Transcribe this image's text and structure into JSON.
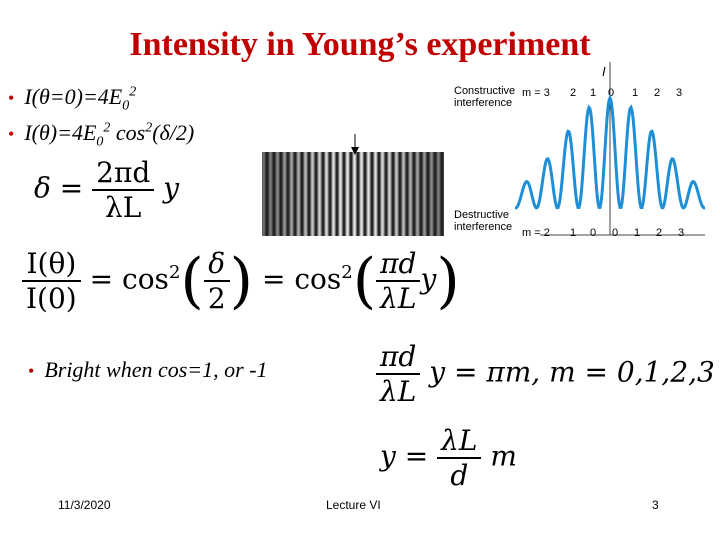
{
  "slide": {
    "title": "Intensity in Young’s experiment",
    "bullets": [
      {
        "pre": "I(",
        "theta": "θ",
        "mid": "=0)=4E",
        "sub": "0",
        "sup": "2",
        "post": ""
      },
      {
        "pre": "I(",
        "theta": "θ",
        "mid": ")=4E",
        "sub": "0",
        "sup": "2",
        "post": " cos",
        "sup2": "2",
        "tail": "(δ/2)"
      }
    ],
    "bullet_dot": "•",
    "bright_bullet": "Bright  when cos=1, or -1",
    "eq_delta": {
      "lhs": "δ",
      "eq": "=",
      "num": "2πd",
      "den": "λL",
      "var": "y"
    },
    "eq_intensity": {
      "num_l": "I(θ)",
      "den_l": "I(0)",
      "eq": "=",
      "cos": "cos",
      "sup": "2",
      "num_m": "δ",
      "den_m": "2",
      "num_r": "πd",
      "den_r": "λL",
      "var": "y"
    },
    "eq_bright": {
      "num": "πd",
      "den": "λL",
      "rhs": "y = πm, m = 0,1,2,3"
    },
    "eq_y": {
      "lhs": "y",
      "eq": "=",
      "num": "λL",
      "den": "d",
      "var": "m"
    },
    "figure": {
      "constructive_label": [
        "Constructive",
        "interference"
      ],
      "destructive_label": [
        "Destructive",
        "interference"
      ],
      "axis_label": "I",
      "m_top_prefix": "m = 3",
      "m_top": [
        "2",
        "1",
        "0",
        "1",
        "2",
        "3"
      ],
      "m_bottom_prefix": "m = 2",
      "m_bottom": [
        "1",
        "0",
        "0",
        "1",
        "2",
        "3"
      ],
      "curve_color": "#1e8fd6"
    },
    "footer": {
      "date": "11/3/2020",
      "center": "Lecture VI",
      "page": "3"
    }
  }
}
